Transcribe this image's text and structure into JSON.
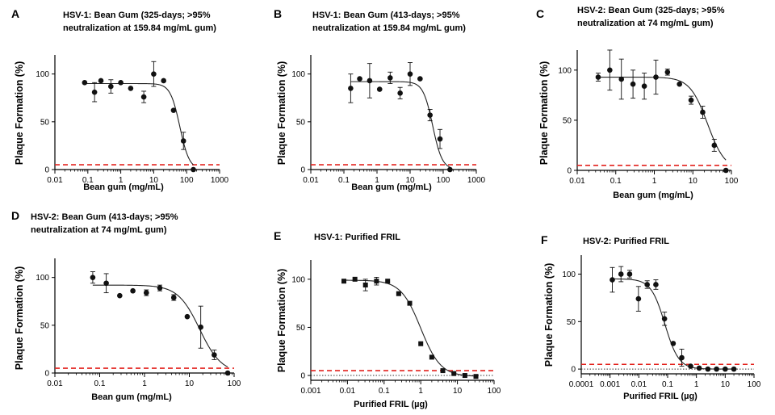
{
  "figure": {
    "shared_ylabel": "Plaque Formation (%)",
    "threshold_color": "#e3211c",
    "curve_color": "#222222",
    "marker_color": "#111111"
  },
  "chart_data": [
    {
      "panel": "A",
      "type": "scatter",
      "title": "HSV-1: Bean Gum (325-days; >95% neutralization at 159.84 mg/mL gum)",
      "title_lines": [
        "HSV-1: Bean Gum (325-days; >95%",
        "neutralization at 159.84 mg/mL gum)"
      ],
      "xlabel": "Bean gum (mg/mL)",
      "ylabel": "Plaque Formation (%)",
      "xscale": "log",
      "xlim": [
        0.01,
        1000
      ],
      "xticks": [
        0.01,
        0.1,
        1,
        10,
        100,
        1000
      ],
      "xtick_labels": [
        "0.01",
        "0.1",
        "1",
        "10",
        "100",
        "1000"
      ],
      "ylim": [
        0,
        120
      ],
      "yticks": [
        0,
        50,
        100
      ],
      "threshold": 5,
      "fit": {
        "top": 90,
        "bottom": 0,
        "ec50": 62,
        "hill": 3.0
      },
      "points": [
        {
          "x": 0.08,
          "y": 91
        },
        {
          "x": 0.16,
          "y": 81,
          "err": 10
        },
        {
          "x": 0.25,
          "y": 93
        },
        {
          "x": 0.5,
          "y": 87,
          "err": 7
        },
        {
          "x": 1.0,
          "y": 91
        },
        {
          "x": 2.0,
          "y": 85
        },
        {
          "x": 5.0,
          "y": 76,
          "err": 6
        },
        {
          "x": 10,
          "y": 100,
          "err": 13
        },
        {
          "x": 20,
          "y": 93
        },
        {
          "x": 40,
          "y": 62
        },
        {
          "x": 80,
          "y": 30,
          "err": 9
        },
        {
          "x": 160,
          "y": 0
        }
      ]
    },
    {
      "panel": "B",
      "type": "scatter",
      "title": "HSV-1: Bean Gum (413-days; >95% neutralization at 159.84 mg/mL gum)",
      "title_lines": [
        "HSV-1: Bean Gum (413-days; >95%",
        "neutralization at 159.84 mg/mL gum)"
      ],
      "xlabel": "Bean gum (mg/mL)",
      "ylabel": "Plaque Formation (%)",
      "xscale": "log",
      "xlim": [
        0.01,
        1000
      ],
      "xticks": [
        0.01,
        0.1,
        1,
        10,
        100,
        1000
      ],
      "xtick_labels": [
        "0.01",
        "0.1",
        "1",
        "10",
        "100",
        "1000"
      ],
      "ylim": [
        0,
        120
      ],
      "yticks": [
        0,
        50,
        100
      ],
      "threshold": 5,
      "fit": {
        "top": 92,
        "bottom": 0,
        "ec50": 48,
        "hill": 3.0
      },
      "points": [
        {
          "x": 0.16,
          "y": 85,
          "err": 15
        },
        {
          "x": 0.3,
          "y": 95
        },
        {
          "x": 0.6,
          "y": 93,
          "err": 18
        },
        {
          "x": 1.2,
          "y": 84
        },
        {
          "x": 2.5,
          "y": 96,
          "err": 6
        },
        {
          "x": 5.0,
          "y": 80,
          "err": 6
        },
        {
          "x": 10,
          "y": 100,
          "err": 12
        },
        {
          "x": 20,
          "y": 95
        },
        {
          "x": 40,
          "y": 57,
          "err": 6
        },
        {
          "x": 80,
          "y": 32,
          "err": 10
        },
        {
          "x": 160,
          "y": 0
        }
      ]
    },
    {
      "panel": "C",
      "type": "scatter",
      "title": "HSV-2: Bean Gum (325-days; >95% neutralization at 74 mg/mL gum)",
      "title_lines": [
        "HSV-2: Bean Gum (325-days; >95%",
        "neutralization at 74 mg/mL gum)"
      ],
      "xlabel": "Bean gum (mg/mL)",
      "ylabel": "Plaque Formation (%)",
      "xscale": "log",
      "xlim": [
        0.01,
        100
      ],
      "xticks": [
        0.01,
        0.1,
        1,
        10,
        100
      ],
      "xtick_labels": [
        "0.01",
        "0.1",
        "1",
        "10",
        "100"
      ],
      "ylim": [
        0,
        120
      ],
      "yticks": [
        0,
        50,
        100
      ],
      "threshold": 5,
      "fit": {
        "top": 93,
        "bottom": 0,
        "ec50": 24,
        "hill": 1.9
      },
      "points": [
        {
          "x": 0.035,
          "y": 93,
          "err": 4
        },
        {
          "x": 0.07,
          "y": 100,
          "err": 20
        },
        {
          "x": 0.14,
          "y": 91,
          "err": 20
        },
        {
          "x": 0.28,
          "y": 86,
          "err": 14
        },
        {
          "x": 0.55,
          "y": 84,
          "err": 13
        },
        {
          "x": 1.1,
          "y": 93,
          "err": 17
        },
        {
          "x": 2.2,
          "y": 98,
          "err": 3
        },
        {
          "x": 4.5,
          "y": 86
        },
        {
          "x": 9.0,
          "y": 70,
          "err": 4
        },
        {
          "x": 18,
          "y": 58,
          "err": 6
        },
        {
          "x": 36,
          "y": 25,
          "err": 6
        },
        {
          "x": 72,
          "y": 0
        }
      ]
    },
    {
      "panel": "D",
      "type": "scatter",
      "title": "HSV-2: Bean Gum (413-days; >95% neutralization at 74 mg/mL gum)",
      "title_lines": [
        "HSV-2: Bean Gum (413-days; >95%",
        "neutralization at 74 mg/mL gum)"
      ],
      "xlabel": "Bean gum (mg/mL)",
      "ylabel": "Plaque Formation (%)",
      "xscale": "log",
      "xlim": [
        0.01,
        100
      ],
      "xticks": [
        0.01,
        0.1,
        1,
        10,
        100
      ],
      "xtick_labels": [
        "0.01",
        "0.1",
        "1",
        "10",
        "100"
      ],
      "ylim": [
        0,
        120
      ],
      "yticks": [
        0,
        50,
        100
      ],
      "threshold": 5,
      "fit": {
        "top": 92,
        "bottom": 0,
        "ec50": 17,
        "hill": 1.8
      },
      "points": [
        {
          "x": 0.07,
          "y": 100,
          "err": 6
        },
        {
          "x": 0.14,
          "y": 94,
          "err": 10
        },
        {
          "x": 0.28,
          "y": 81
        },
        {
          "x": 0.55,
          "y": 86
        },
        {
          "x": 1.1,
          "y": 84,
          "err": 3
        },
        {
          "x": 2.2,
          "y": 89,
          "err": 3
        },
        {
          "x": 4.5,
          "y": 79,
          "err": 3
        },
        {
          "x": 9.0,
          "y": 59
        },
        {
          "x": 18,
          "y": 48,
          "err": 22
        },
        {
          "x": 36,
          "y": 19,
          "err": 5
        },
        {
          "x": 72,
          "y": 0
        }
      ]
    },
    {
      "panel": "E",
      "type": "scatter",
      "title": "HSV-1: Purified FRIL",
      "title_lines": [
        "HSV-1: Purified FRIL"
      ],
      "xlabel": "Purified FRIL (µg)",
      "ylabel": "Plaque Formation (%)",
      "xscale": "log",
      "xlim": [
        0.001,
        100
      ],
      "xticks": [
        0.001,
        0.01,
        0.1,
        1,
        10,
        100
      ],
      "xtick_labels": [
        "0.001",
        "0.01",
        "0.1",
        "1",
        "10",
        "100"
      ],
      "ylim": [
        -5,
        120
      ],
      "yticks": [
        0,
        50,
        100
      ],
      "threshold": 5,
      "baseline": 0,
      "marker": "square",
      "fit": {
        "top": 99,
        "bottom": -1,
        "ec50": 1.0,
        "hill": 1.6
      },
      "points": [
        {
          "x": 0.008,
          "y": 98
        },
        {
          "x": 0.016,
          "y": 100
        },
        {
          "x": 0.031,
          "y": 94,
          "err": 6
        },
        {
          "x": 0.062,
          "y": 98,
          "err": 4
        },
        {
          "x": 0.125,
          "y": 98
        },
        {
          "x": 0.25,
          "y": 85
        },
        {
          "x": 0.5,
          "y": 75
        },
        {
          "x": 1.0,
          "y": 33
        },
        {
          "x": 2.0,
          "y": 19
        },
        {
          "x": 4.0,
          "y": 5
        },
        {
          "x": 8.0,
          "y": 2
        },
        {
          "x": 16,
          "y": 0
        },
        {
          "x": 32,
          "y": -1
        }
      ]
    },
    {
      "panel": "F",
      "type": "scatter",
      "title": "HSV-2: Purified FRIL",
      "title_lines": [
        "HSV-2: Purified FRIL"
      ],
      "xlabel": "Purified FRIL (µg)",
      "ylabel": "Plaque Formation (%)",
      "xscale": "log",
      "xlim": [
        0.0001,
        100
      ],
      "xticks": [
        0.0001,
        0.001,
        0.01,
        0.1,
        1,
        10,
        100
      ],
      "xtick_labels": [
        "0.0001",
        "0.001",
        "0.01",
        "0.1",
        "1",
        "10",
        "100"
      ],
      "ylim": [
        -5,
        120
      ],
      "yticks": [
        0,
        50,
        100
      ],
      "threshold": 5,
      "baseline": 0,
      "fit": {
        "top": 95,
        "bottom": 0,
        "ec50": 0.08,
        "hill": 1.8
      },
      "points": [
        {
          "x": 0.0012,
          "y": 94,
          "err": 13
        },
        {
          "x": 0.0024,
          "y": 100,
          "err": 8
        },
        {
          "x": 0.0048,
          "y": 100,
          "err": 4
        },
        {
          "x": 0.0097,
          "y": 74,
          "err": 13
        },
        {
          "x": 0.0195,
          "y": 89,
          "err": 4
        },
        {
          "x": 0.039,
          "y": 89,
          "err": 5
        },
        {
          "x": 0.078,
          "y": 53,
          "err": 7
        },
        {
          "x": 0.156,
          "y": 27
        },
        {
          "x": 0.31,
          "y": 12,
          "err": 9
        },
        {
          "x": 0.63,
          "y": 3
        },
        {
          "x": 1.25,
          "y": 1
        },
        {
          "x": 2.5,
          "y": 0
        },
        {
          "x": 5.0,
          "y": 0
        },
        {
          "x": 10,
          "y": 0
        },
        {
          "x": 20,
          "y": 0
        }
      ]
    }
  ]
}
